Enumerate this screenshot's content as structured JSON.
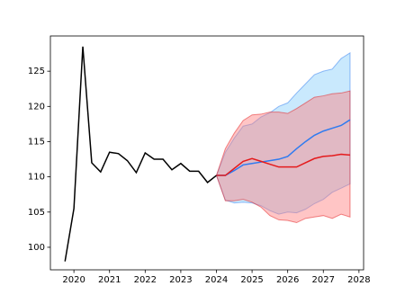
{
  "chart_data": {
    "type": "line",
    "xlim": [
      2019.34,
      2028.13
    ],
    "ylim": [
      96.8,
      130
    ],
    "xticks": [
      2020,
      2021,
      2022,
      2023,
      2024,
      2025,
      2026,
      2027,
      2028
    ],
    "yticks": [
      100,
      105,
      110,
      115,
      120,
      125
    ],
    "series": [
      {
        "color": "#000000",
        "x": [
          2019.75,
          2020,
          2020.25,
          2020.5,
          2020.75,
          2021,
          2021.25,
          2021.5,
          2021.75,
          2022,
          2022.25,
          2022.5,
          2022.75,
          2023,
          2023.25,
          2023.5,
          2023.75,
          2024
        ],
        "values": [
          98,
          105.5,
          128.5,
          112,
          110.7,
          113.5,
          113.3,
          112.3,
          110.6,
          113.4,
          112.5,
          112.5,
          111,
          111.9,
          110.8,
          110.8,
          109.2,
          110.2
        ]
      },
      {
        "color": "#2f7bf0",
        "band_color": "#87cefa",
        "x": [
          2024,
          2024.25,
          2024.5,
          2024.75,
          2025,
          2025.25,
          2025.5,
          2025.75,
          2026,
          2026.25,
          2026.5,
          2026.75,
          2027,
          2027.25,
          2027.5,
          2027.75
        ],
        "values": [
          110.2,
          110.2,
          110.9,
          111.7,
          111.9,
          112.1,
          112.3,
          112.5,
          112.9,
          114.0,
          115.0,
          115.9,
          116.5,
          116.9,
          117.3,
          118.1
        ],
        "lower": [
          110.2,
          106.7,
          106.3,
          106.4,
          106.3,
          105.9,
          105.2,
          104.7,
          105.0,
          104.9,
          105.4,
          106.2,
          106.8,
          107.8,
          108.4,
          109.0
        ],
        "upper": [
          110.2,
          113.5,
          115.5,
          117.2,
          117.5,
          118.5,
          119.1,
          120.0,
          120.5,
          121.9,
          123.2,
          124.5,
          125.0,
          125.3,
          126.8,
          127.6
        ]
      },
      {
        "color": "#e41a1c",
        "band_color": "#ff7f7f",
        "x": [
          2024,
          2024.25,
          2024.5,
          2024.75,
          2025,
          2025.25,
          2025.5,
          2025.75,
          2026,
          2026.25,
          2026.5,
          2026.75,
          2027,
          2027.25,
          2027.5,
          2027.75
        ],
        "values": [
          110.2,
          110.2,
          111.2,
          112.2,
          112.6,
          112.2,
          111.8,
          111.4,
          111.4,
          111.4,
          112.0,
          112.6,
          112.9,
          113.0,
          113.2,
          113.1
        ],
        "lower": [
          110.2,
          106.6,
          106.6,
          106.8,
          106.4,
          105.7,
          104.5,
          103.9,
          103.8,
          103.5,
          104.1,
          104.3,
          104.5,
          104.1,
          104.7,
          104.3
        ],
        "upper": [
          110.2,
          114.0,
          116.2,
          118.0,
          118.8,
          118.9,
          119.2,
          119.2,
          119.0,
          119.7,
          120.5,
          121.3,
          121.5,
          121.8,
          121.9,
          122.2
        ]
      }
    ]
  }
}
